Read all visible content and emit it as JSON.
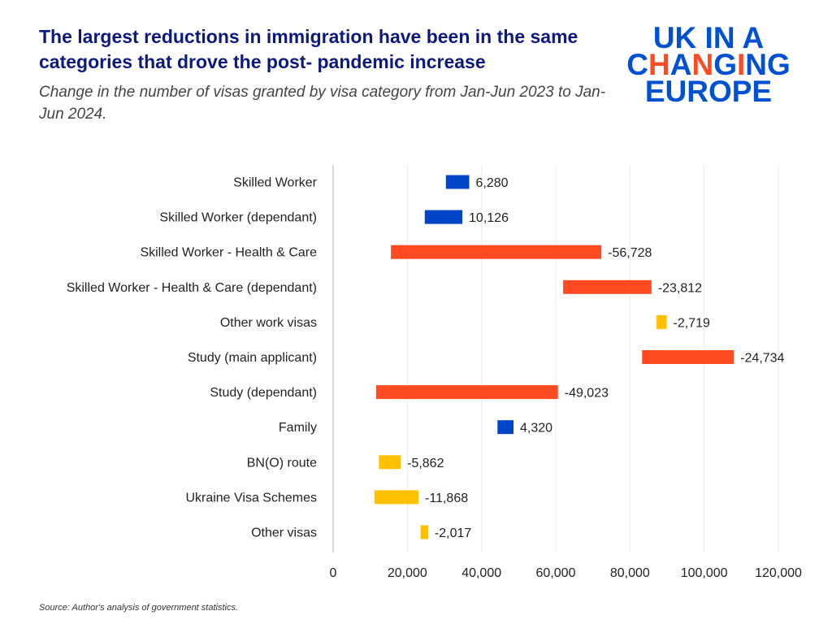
{
  "chart_data": {
    "type": "bar",
    "subtype": "floating-bar",
    "title": "The largest reductions in immigration have been in the same categories that drove the post- pandemic increase",
    "subtitle": "Change in the number of visas granted by visa category from Jan-Jun 2023 to Jan-Jun 2024.",
    "source": "Source: Author's analysis of government statistics.",
    "categories": [
      "Skilled Worker",
      "Skilled Worker (dependant)",
      "Skilled Worker - Health & Care",
      "Skilled Worker - Health & Care (dependant)",
      "Other work visas",
      "Study (main applicant)",
      "Study (dependant)",
      "Family",
      "BN(O) route",
      "Ukraine Visa Schemes",
      "Other visas"
    ],
    "from_values": [
      30400,
      24700,
      72300,
      85800,
      89900,
      108000,
      60600,
      44300,
      18200,
      23000,
      25600
    ],
    "changes": [
      6280,
      10126,
      -56728,
      -23812,
      -2719,
      -24734,
      -49023,
      4320,
      -5862,
      -11868,
      -2017
    ],
    "value_labels": [
      "6,280",
      "10,126",
      "-56,728",
      "-23,812",
      "-2,719",
      "-24,734",
      "-49,023",
      "4,320",
      "-5,862",
      "-11,868",
      "-2,017"
    ],
    "bar_colors": [
      "#0044c8",
      "#0044c8",
      "#ff4a22",
      "#ff4a22",
      "#ffc000",
      "#ff4a22",
      "#ff4a22",
      "#0044c8",
      "#ffc000",
      "#ffc000",
      "#ffc000"
    ],
    "xlim": [
      0,
      120000
    ],
    "xticks": [
      0,
      20000,
      40000,
      60000,
      80000,
      100000,
      120000
    ],
    "xtick_labels": [
      "0",
      "20,000",
      "40,000",
      "60,000",
      "80,000",
      "100,000",
      "120,000"
    ],
    "grid": "vertical",
    "legend": "none"
  },
  "logo": {
    "line1": "UK IN A",
    "line2_a": "C",
    "line2_b": "H",
    "line2_c": "A",
    "line2_d": "N",
    "line2_e": "G",
    "line2_f": "I",
    "line2_g": "NG",
    "line3": "EUROPE"
  },
  "colors": {
    "title": "#0d1a7d",
    "logo": "#0050d2",
    "accent": "#ff4a22"
  }
}
